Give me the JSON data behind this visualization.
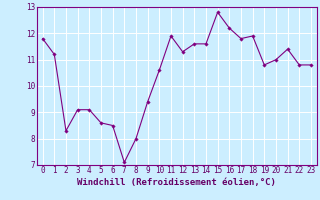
{
  "x": [
    0,
    1,
    2,
    3,
    4,
    5,
    6,
    7,
    8,
    9,
    10,
    11,
    12,
    13,
    14,
    15,
    16,
    17,
    18,
    19,
    20,
    21,
    22,
    23
  ],
  "y": [
    11.8,
    11.2,
    8.3,
    9.1,
    9.1,
    8.6,
    8.5,
    7.1,
    8.0,
    9.4,
    10.6,
    11.9,
    11.3,
    11.6,
    11.6,
    12.8,
    12.2,
    11.8,
    11.9,
    10.8,
    11.0,
    11.4,
    10.8,
    10.8
  ],
  "line_color": "#800080",
  "marker": "D",
  "marker_size": 1.8,
  "line_width": 0.8,
  "xlabel": "Windchill (Refroidissement éolien,°C)",
  "xlabel_fontsize": 6.5,
  "ylim": [
    7,
    13
  ],
  "xlim": [
    -0.5,
    23.5
  ],
  "yticks": [
    7,
    8,
    9,
    10,
    11,
    12,
    13
  ],
  "xticks": [
    0,
    1,
    2,
    3,
    4,
    5,
    6,
    7,
    8,
    9,
    10,
    11,
    12,
    13,
    14,
    15,
    16,
    17,
    18,
    19,
    20,
    21,
    22,
    23
  ],
  "tick_fontsize": 5.5,
  "background_color": "#cceeff",
  "grid_color": "#ffffff",
  "grid_linewidth": 0.7,
  "line_purple": "#800080",
  "label_color": "#660066"
}
